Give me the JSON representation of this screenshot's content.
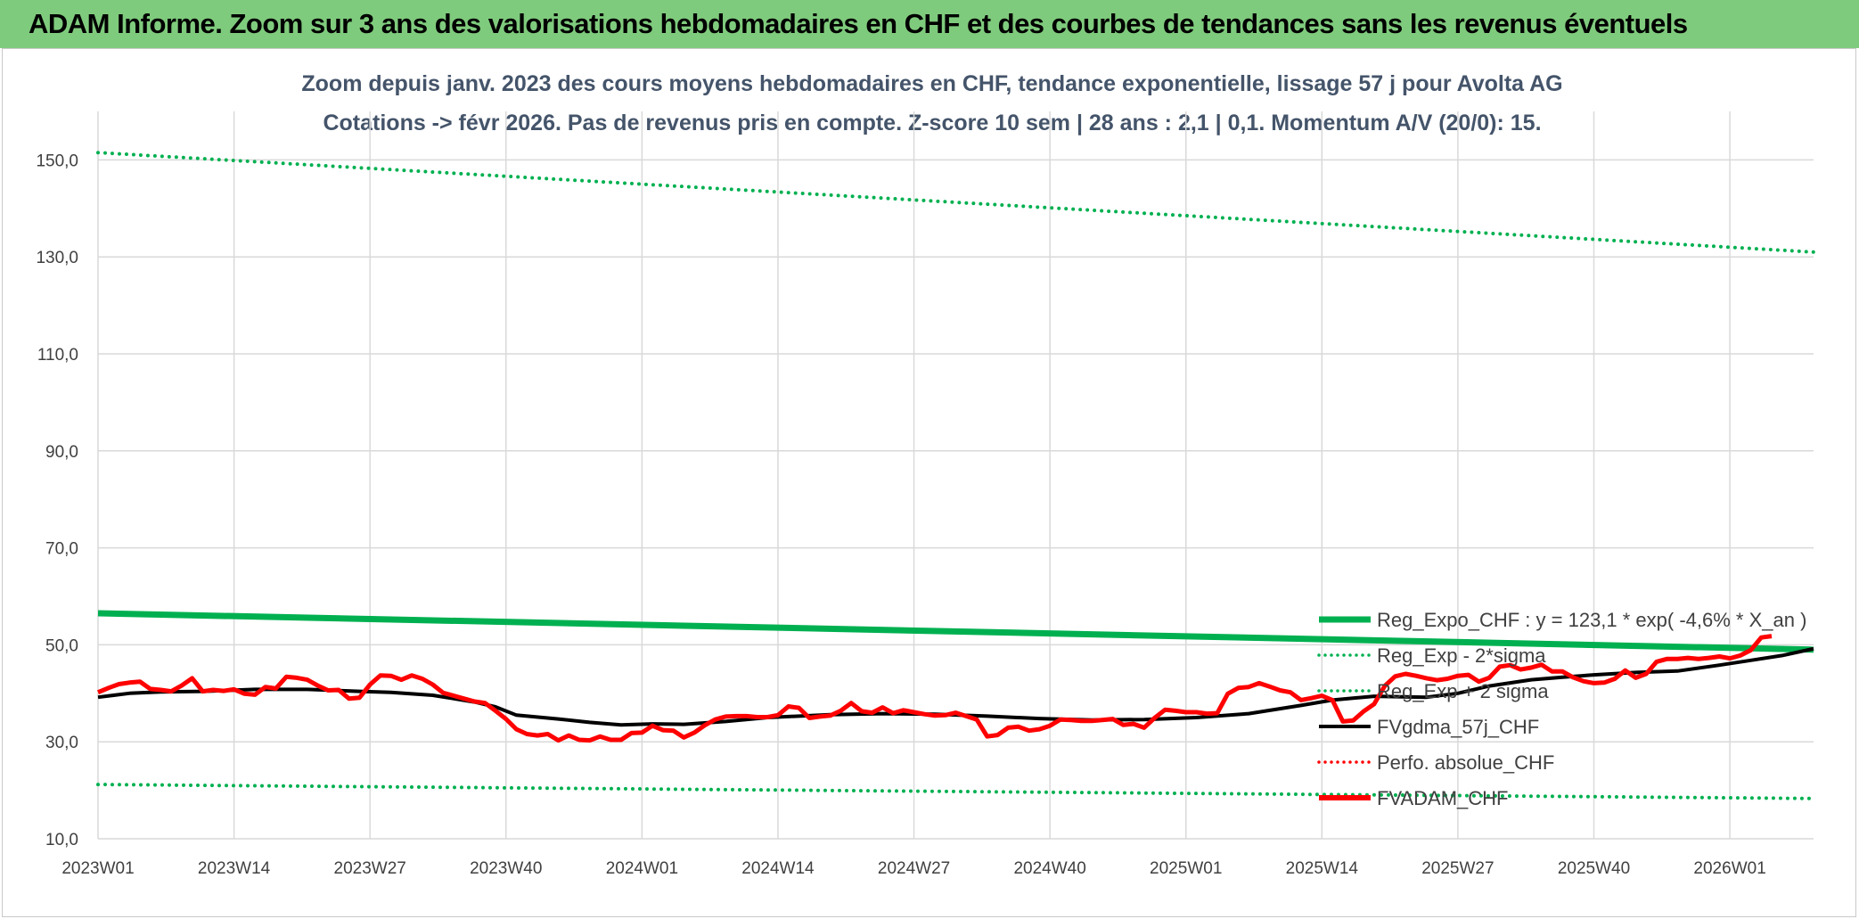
{
  "banner": {
    "title": "ADAM Informe. Zoom sur 3 ans des valorisations hebdomadaires en CHF et des courbes de tendances sans les revenus éventuels",
    "bg_color": "#7fcb7d"
  },
  "chart_data": {
    "type": "line",
    "title_line1": "Zoom depuis janv. 2023 des cours moyens hebdomadaires en CHF, tendance exponentielle, lissage 57 j pour Avolta AG",
    "title_line2": "Cotations -> févr 2026. Pas de revenus pris en compte. Z-score 10 sem | 28 ans : 2,1 | 0,1. Momentum A/V (20/0): 15.",
    "ylim": [
      10,
      160
    ],
    "y_ticks": [
      "10,0",
      "30,0",
      "50,0",
      "70,0",
      "90,0",
      "110,0",
      "130,0",
      "150,0"
    ],
    "x_tick_labels": [
      "2023W01",
      "2023W14",
      "2023W27",
      "2023W40",
      "2024W01",
      "2024W14",
      "2024W27",
      "2024W40",
      "2025W01",
      "2025W14",
      "2025W27",
      "2025W40",
      "2026W01"
    ],
    "grid": true,
    "legend_position": "bottom-right",
    "series": [
      {
        "name": "Reg_Expo_CHF : y = 123,1 * exp( -4,6% *  X_an )",
        "color": "#00b050",
        "style": "solid-thick",
        "points": [
          [
            0,
            56.5
          ],
          [
            164,
            49.0
          ]
        ]
      },
      {
        "name": "Reg_Exp - 2*sigma",
        "color": "#00b050",
        "style": "dotted",
        "points": [
          [
            0,
            21.2
          ],
          [
            164,
            18.3
          ]
        ]
      },
      {
        "name": "Reg_Exp + 2 sigma",
        "color": "#00b050",
        "style": "dotted",
        "points": [
          [
            0,
            151.5
          ],
          [
            164,
            131.0
          ]
        ]
      },
      {
        "name": "FVgdma_57j_CHF",
        "color": "#000000",
        "style": "solid",
        "points": [
          [
            0,
            39.2
          ],
          [
            3,
            40.0
          ],
          [
            6,
            40.3
          ],
          [
            10,
            40.4
          ],
          [
            15,
            40.8
          ],
          [
            20,
            40.8
          ],
          [
            25,
            40.4
          ],
          [
            28,
            40.2
          ],
          [
            32,
            39.6
          ],
          [
            36,
            38.2
          ],
          [
            38,
            37.2
          ],
          [
            40,
            35.5
          ],
          [
            44,
            34.7
          ],
          [
            47,
            34.0
          ],
          [
            50,
            33.5
          ],
          [
            53,
            33.7
          ],
          [
            56,
            33.6
          ],
          [
            60,
            34.2
          ],
          [
            64,
            35.0
          ],
          [
            70,
            35.6
          ],
          [
            75,
            35.8
          ],
          [
            80,
            35.7
          ],
          [
            85,
            35.3
          ],
          [
            90,
            34.8
          ],
          [
            95,
            34.5
          ],
          [
            100,
            34.6
          ],
          [
            105,
            35.0
          ],
          [
            110,
            35.8
          ],
          [
            115,
            37.5
          ],
          [
            118,
            38.6
          ],
          [
            122,
            39.4
          ],
          [
            127,
            39.2
          ],
          [
            130,
            40.0
          ],
          [
            133,
            41.5
          ],
          [
            137,
            42.8
          ],
          [
            140,
            43.3
          ],
          [
            143,
            43.8
          ],
          [
            147,
            44.3
          ],
          [
            151,
            44.6
          ],
          [
            155,
            45.8
          ],
          [
            158,
            46.8
          ],
          [
            161,
            47.8
          ],
          [
            164,
            49.2
          ]
        ]
      },
      {
        "name": "Perfo. absolue_CHF",
        "color": "#ff0000",
        "style": "dotted",
        "points": []
      },
      {
        "name": "FVADAM_CHF",
        "color": "#ff0000",
        "style": "solid-thick",
        "points": [
          [
            0,
            40.2
          ],
          [
            1,
            41.1
          ],
          [
            2,
            41.9
          ],
          [
            3,
            42.2
          ],
          [
            4,
            42.4
          ],
          [
            5,
            40.9
          ],
          [
            6,
            40.7
          ],
          [
            7,
            40.4
          ],
          [
            8,
            41.6
          ],
          [
            9,
            43.1
          ],
          [
            10,
            40.4
          ],
          [
            11,
            40.7
          ],
          [
            12,
            40.5
          ],
          [
            13,
            40.8
          ],
          [
            14,
            39.9
          ],
          [
            15,
            39.7
          ],
          [
            16,
            41.3
          ],
          [
            17,
            41.0
          ],
          [
            18,
            43.4
          ],
          [
            19,
            43.2
          ],
          [
            20,
            42.8
          ],
          [
            21,
            41.6
          ],
          [
            22,
            40.6
          ],
          [
            23,
            40.7
          ],
          [
            24,
            38.9
          ],
          [
            25,
            39.1
          ],
          [
            26,
            41.8
          ],
          [
            27,
            43.7
          ],
          [
            28,
            43.6
          ],
          [
            29,
            42.8
          ],
          [
            30,
            43.7
          ],
          [
            31,
            43.0
          ],
          [
            32,
            41.8
          ],
          [
            33,
            40.1
          ],
          [
            34,
            39.5
          ],
          [
            35,
            38.9
          ],
          [
            36,
            38.3
          ],
          [
            37,
            38.0
          ],
          [
            38,
            36.4
          ],
          [
            39,
            34.7
          ],
          [
            40,
            32.6
          ],
          [
            41,
            31.6
          ],
          [
            42,
            31.3
          ],
          [
            43,
            31.6
          ],
          [
            44,
            30.3
          ],
          [
            45,
            31.3
          ],
          [
            46,
            30.4
          ],
          [
            47,
            30.3
          ],
          [
            48,
            31.1
          ],
          [
            49,
            30.4
          ],
          [
            50,
            30.4
          ],
          [
            51,
            31.8
          ],
          [
            52,
            31.9
          ],
          [
            53,
            33.3
          ],
          [
            54,
            32.4
          ],
          [
            55,
            32.3
          ],
          [
            56,
            30.9
          ],
          [
            57,
            31.9
          ],
          [
            58,
            33.4
          ],
          [
            59,
            34.6
          ],
          [
            60,
            35.2
          ],
          [
            61,
            35.3
          ],
          [
            62,
            35.3
          ],
          [
            63,
            35.1
          ],
          [
            64,
            35.1
          ],
          [
            65,
            35.5
          ],
          [
            66,
            37.3
          ],
          [
            67,
            37.0
          ],
          [
            68,
            34.9
          ],
          [
            69,
            35.2
          ],
          [
            70,
            35.4
          ],
          [
            71,
            36.4
          ],
          [
            72,
            38.0
          ],
          [
            73,
            36.3
          ],
          [
            74,
            36.0
          ],
          [
            75,
            37.1
          ],
          [
            76,
            35.9
          ],
          [
            77,
            36.5
          ],
          [
            78,
            36.1
          ],
          [
            79,
            35.7
          ],
          [
            80,
            35.4
          ],
          [
            81,
            35.5
          ],
          [
            82,
            36.0
          ],
          [
            83,
            35.3
          ],
          [
            84,
            34.6
          ],
          [
            85,
            31.1
          ],
          [
            86,
            31.4
          ],
          [
            87,
            32.9
          ],
          [
            88,
            33.1
          ],
          [
            89,
            32.3
          ],
          [
            90,
            32.6
          ],
          [
            91,
            33.3
          ],
          [
            92,
            34.6
          ],
          [
            93,
            34.5
          ],
          [
            94,
            34.3
          ],
          [
            95,
            34.3
          ],
          [
            96,
            34.5
          ],
          [
            97,
            34.7
          ],
          [
            98,
            33.5
          ],
          [
            99,
            33.7
          ],
          [
            100,
            32.9
          ],
          [
            101,
            34.9
          ],
          [
            102,
            36.6
          ],
          [
            103,
            36.4
          ],
          [
            104,
            36.1
          ],
          [
            105,
            36.1
          ],
          [
            106,
            35.8
          ],
          [
            107,
            35.9
          ],
          [
            108,
            39.9
          ],
          [
            109,
            41.1
          ],
          [
            110,
            41.3
          ],
          [
            111,
            42.1
          ],
          [
            112,
            41.4
          ],
          [
            113,
            40.6
          ],
          [
            114,
            40.2
          ],
          [
            115,
            38.6
          ],
          [
            116,
            39.0
          ],
          [
            117,
            39.5
          ],
          [
            118,
            38.6
          ],
          [
            119,
            34.2
          ],
          [
            120,
            34.4
          ],
          [
            121,
            36.3
          ],
          [
            122,
            37.8
          ],
          [
            123,
            41.5
          ],
          [
            124,
            43.5
          ],
          [
            125,
            44.0
          ],
          [
            126,
            43.6
          ],
          [
            127,
            43.1
          ],
          [
            128,
            42.7
          ],
          [
            129,
            43.0
          ],
          [
            130,
            43.6
          ],
          [
            131,
            43.8
          ],
          [
            132,
            42.4
          ],
          [
            133,
            43.2
          ],
          [
            134,
            45.5
          ],
          [
            135,
            45.8
          ],
          [
            136,
            44.9
          ],
          [
            137,
            45.3
          ],
          [
            138,
            45.9
          ],
          [
            139,
            44.5
          ],
          [
            140,
            44.5
          ],
          [
            141,
            43.3
          ],
          [
            142,
            42.5
          ],
          [
            143,
            42.1
          ],
          [
            144,
            42.2
          ],
          [
            145,
            43.0
          ],
          [
            146,
            44.7
          ],
          [
            147,
            43.2
          ],
          [
            148,
            44.0
          ],
          [
            149,
            46.5
          ],
          [
            150,
            47.1
          ],
          [
            151,
            47.1
          ],
          [
            152,
            47.3
          ],
          [
            153,
            47.1
          ],
          [
            154,
            47.3
          ],
          [
            155,
            47.6
          ],
          [
            156,
            47.2
          ],
          [
            157,
            47.8
          ],
          [
            158,
            48.9
          ],
          [
            159,
            51.5
          ],
          [
            160,
            51.8
          ]
        ]
      }
    ]
  }
}
